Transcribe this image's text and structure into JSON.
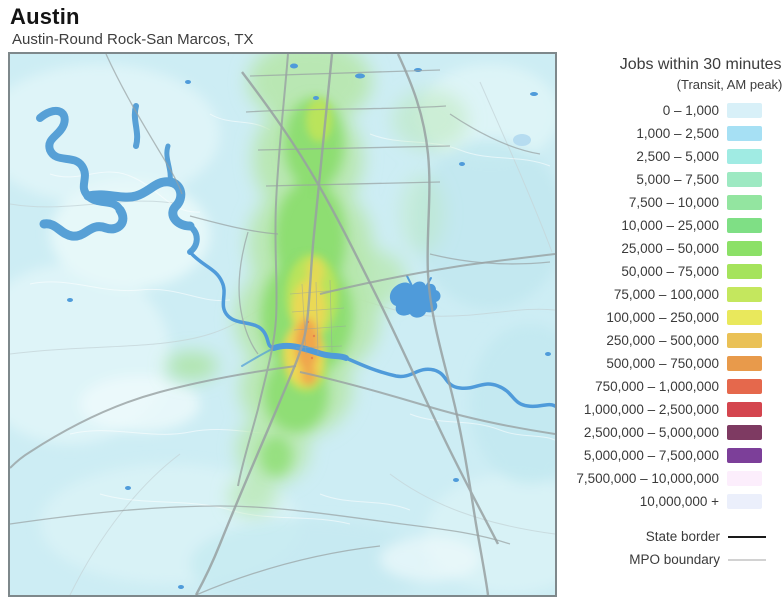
{
  "header": {
    "title": "Austin",
    "subtitle": "Austin-Round Rock-San Marcos, TX"
  },
  "legend": {
    "title": "Jobs within 30 minutes:",
    "subtitle": "(Transit, AM peak):",
    "classes": [
      {
        "label": "0 – 1,000",
        "color": "#d8f0f8"
      },
      {
        "label": "1,000 – 2,500",
        "color": "#a6e0f4"
      },
      {
        "label": "2,500 – 5,000",
        "color": "#a0ebe3"
      },
      {
        "label": "5,000 – 7,500",
        "color": "#9de9c2"
      },
      {
        "label": "7,500 – 10,000",
        "color": "#93e5a0"
      },
      {
        "label": "10,000 – 25,000",
        "color": "#7fdf85"
      },
      {
        "label": "25,000 – 50,000",
        "color": "#8ce067"
      },
      {
        "label": "50,000 – 75,000",
        "color": "#a5e35c"
      },
      {
        "label": "75,000 – 100,000",
        "color": "#c4e75e"
      },
      {
        "label": "100,000 – 250,000",
        "color": "#e9e85c"
      },
      {
        "label": "250,000 – 500,000",
        "color": "#eac156"
      },
      {
        "label": "500,000 – 750,000",
        "color": "#e89a4b"
      },
      {
        "label": "750,000 – 1,000,000",
        "color": "#e5684c"
      },
      {
        "label": "1,000,000 – 2,500,000",
        "color": "#d4454e"
      },
      {
        "label": "2,500,000 – 5,000,000",
        "color": "#7e3a62"
      },
      {
        "label": "5,000,000 – 7,500,000",
        "color": "#7c3f99"
      },
      {
        "label": "7,500,000 – 10,000,000",
        "color": "#fceefc"
      },
      {
        "label": "10,000,000 +",
        "color": "#ebeffb"
      }
    ],
    "state_border_label": "State border",
    "state_border_color": "#1a1a1a",
    "mpo_label": "MPO boundary",
    "mpo_color": "#d2d2d2"
  },
  "map": {
    "base_color": "#cdedf4",
    "water_color": "#57a0d6",
    "road_color": "#98a1a2",
    "frame_color": "#7e888b"
  }
}
